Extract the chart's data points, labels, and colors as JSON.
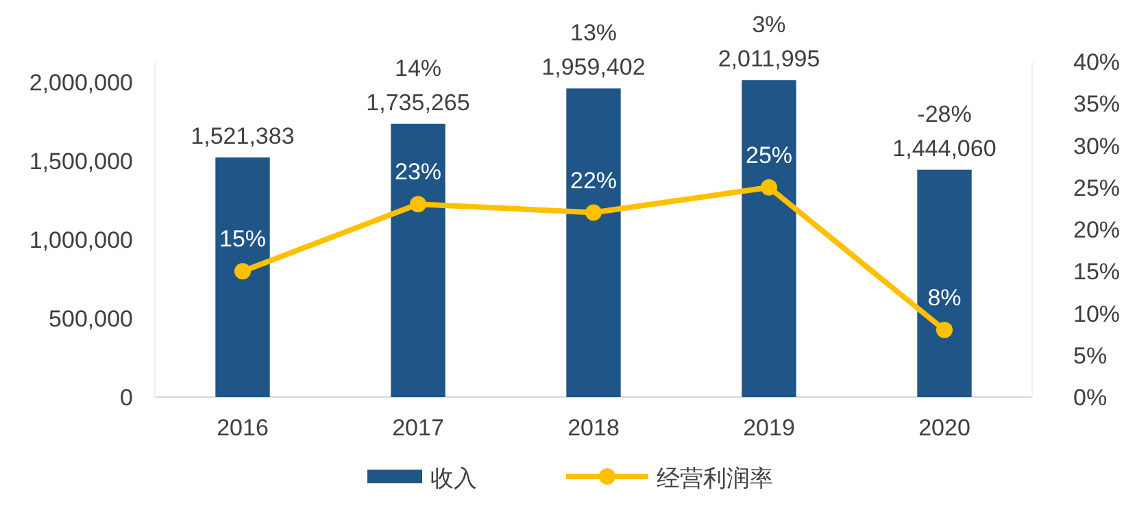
{
  "chart_data": {
    "type": "bar",
    "categories": [
      "2016",
      "2017",
      "2018",
      "2019",
      "2020"
    ],
    "series": [
      {
        "name": "收入",
        "color": "#1f5587",
        "values": [
          1521383,
          1735265,
          1959402,
          2011995,
          1444060
        ],
        "value_labels": [
          "1,521,383",
          "1,735,265",
          "1,959,402",
          "2,011,995",
          "1,444,060"
        ]
      },
      {
        "name": "经营利润率",
        "type": "line",
        "axis": "y2",
        "color": "#ffc000",
        "marker": "circle",
        "values": [
          15,
          23,
          22,
          25,
          8
        ],
        "value_labels": [
          "15%",
          "23%",
          "22%",
          "25%",
          "8%"
        ]
      }
    ],
    "ylim": [
      0,
      2130000
    ],
    "yticks": [
      {
        "value": 0,
        "label": "0"
      },
      {
        "value": 500000,
        "label": "500,000"
      },
      {
        "value": 1000000,
        "label": "1,000,000"
      },
      {
        "value": 1500000,
        "label": "1,500,000"
      },
      {
        "value": 2000000,
        "label": "2,000,000"
      }
    ],
    "y2lim": [
      0,
      40
    ],
    "y2ticks": [
      {
        "value": 0,
        "label": "0%"
      },
      {
        "value": 5,
        "label": "5%"
      },
      {
        "value": 10,
        "label": "10%"
      },
      {
        "value": 15,
        "label": "15%"
      },
      {
        "value": 20,
        "label": "20%"
      },
      {
        "value": 25,
        "label": "25%"
      },
      {
        "value": 30,
        "label": "30%"
      },
      {
        "value": 35,
        "label": "35%"
      },
      {
        "value": 40,
        "label": "40%"
      }
    ],
    "annotations": [
      {
        "text": "14%",
        "x": "2017",
        "y": 1735265
      },
      {
        "text": "13%",
        "x": "2018",
        "y": 1959402
      },
      {
        "text": "3%",
        "x": "2019",
        "y": 2011995
      },
      {
        "text": "-28%",
        "x": "2020",
        "y": 1444060
      }
    ],
    "grid": false,
    "legend": "bottom"
  }
}
